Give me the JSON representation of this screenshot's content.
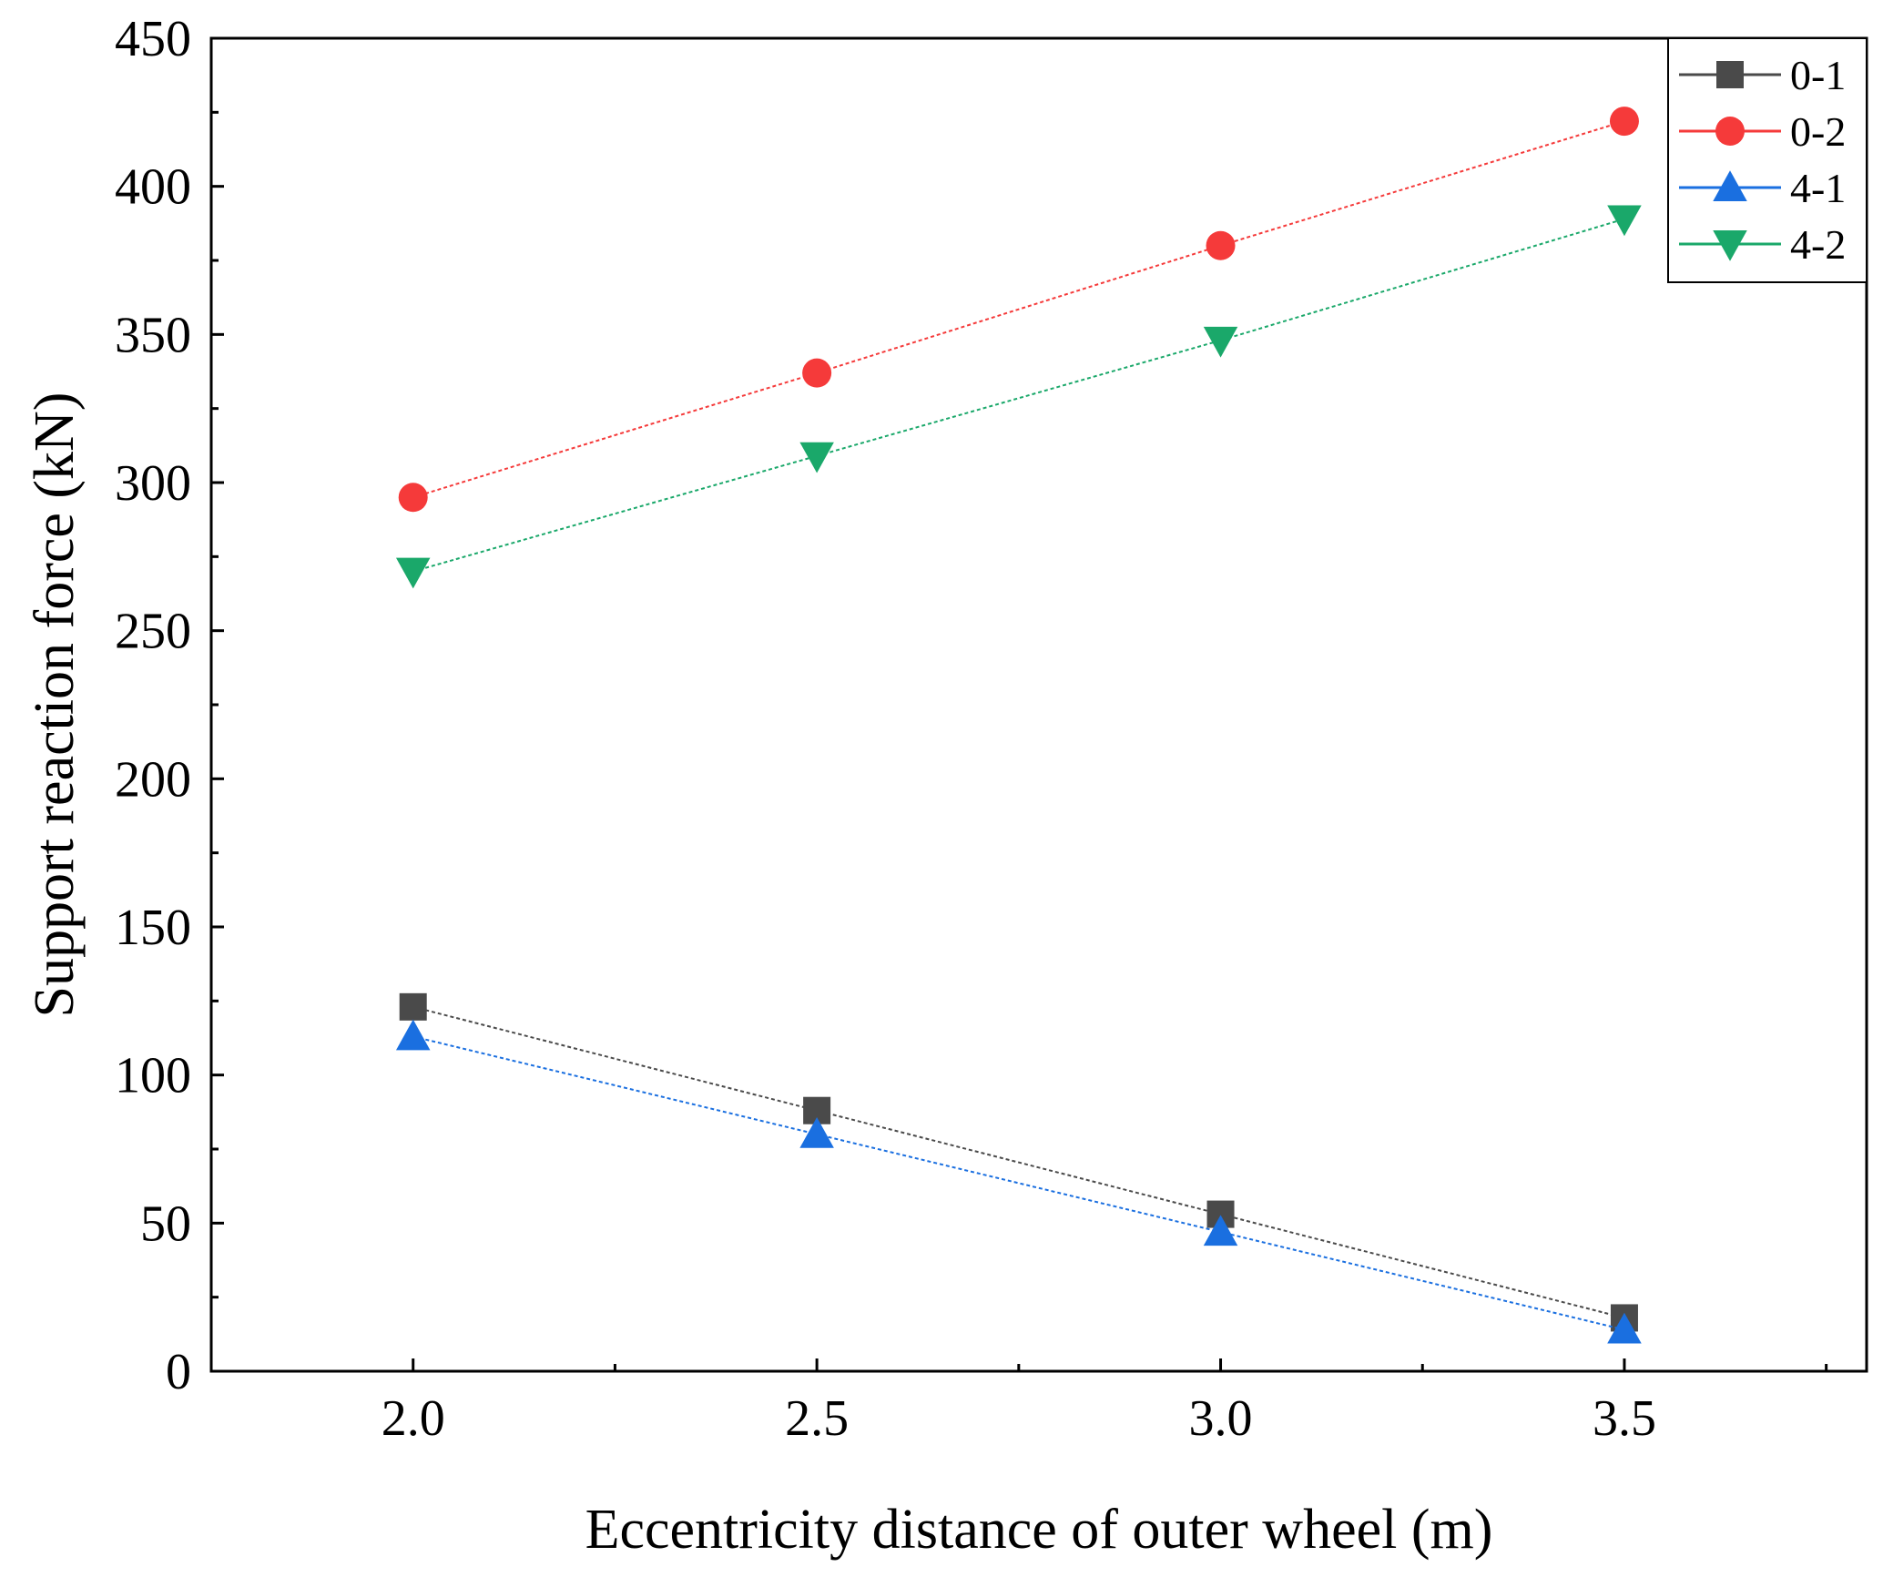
{
  "chart_data": {
    "type": "line",
    "xlabel": "Eccentricity distance of outer wheel (m)",
    "ylabel": "Support reaction force (kN)",
    "xlim": [
      1.75,
      3.8
    ],
    "ylim": [
      0,
      450
    ],
    "x_ticks": [
      "2.0",
      "2.5",
      "3.0",
      "3.5"
    ],
    "y_ticks": [
      "0",
      "50",
      "100",
      "150",
      "200",
      "250",
      "300",
      "350",
      "400",
      "450"
    ],
    "grid": false,
    "legend_position": "top-right",
    "x": [
      2.0,
      2.5,
      3.0,
      3.5
    ],
    "series": [
      {
        "name": "0-1",
        "marker": "square",
        "color": "#4a4a4a",
        "values": [
          123,
          88,
          53,
          18
        ]
      },
      {
        "name": "0-2",
        "marker": "circle",
        "color": "#f53a3a",
        "values": [
          295,
          337,
          380,
          422
        ]
      },
      {
        "name": "4-1",
        "marker": "triangle-up",
        "color": "#1a6fe0",
        "values": [
          113,
          80,
          47,
          14
        ]
      },
      {
        "name": "4-2",
        "marker": "triangle-down",
        "color": "#1aa86a",
        "values": [
          270,
          309,
          348,
          389
        ]
      }
    ]
  }
}
